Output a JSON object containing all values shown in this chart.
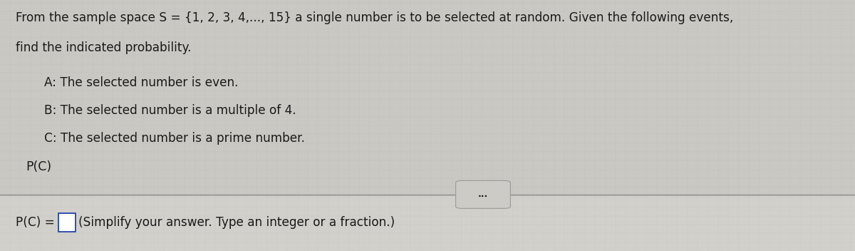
{
  "bg_color": "#d4d0cb",
  "top_bg": "#cccac4",
  "bottom_bg": "#d8d5cf",
  "divider_color": "#888888",
  "text_color": "#1a1a1a",
  "title_line1": "From the sample space S = {1, 2, 3, 4,..., 15} a single number is to be selected at random. Given the following events,",
  "title_line2": "find the indicated probability.",
  "event_A": "A: The selected number is even.",
  "event_B": "B: The selected number is a multiple of 4.",
  "event_C": "C: The selected number is a prime number.",
  "question_label": "P(C)",
  "dots_button_text": "•••",
  "bottom_line1": "P(C) =",
  "bottom_line2": "(Simplify your answer. Type an integer or a fraction.)",
  "figwidth": 12.0,
  "figheight": 3.52,
  "dpi": 100
}
